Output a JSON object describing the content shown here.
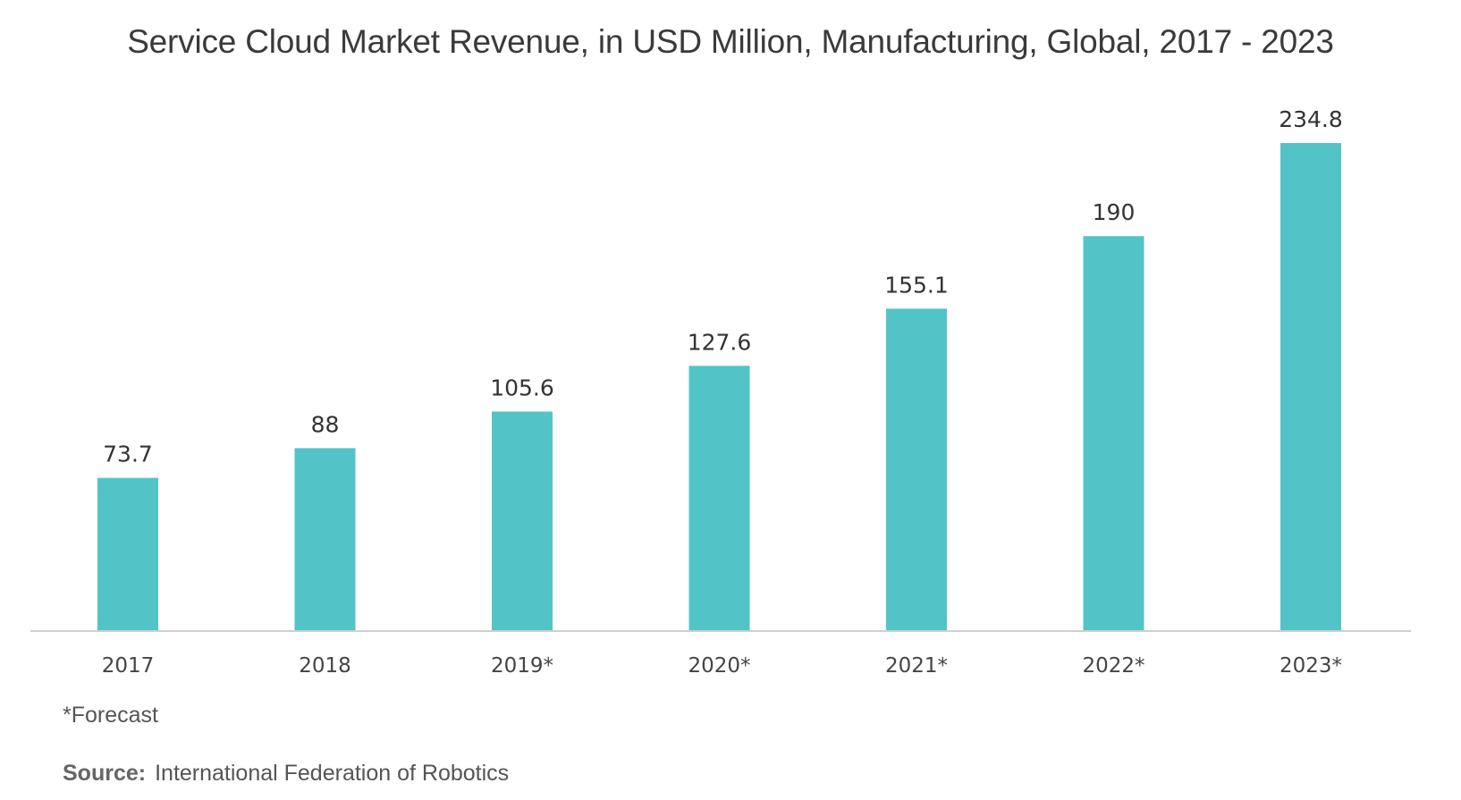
{
  "chart_data": {
    "type": "bar",
    "title": "Service Cloud Market Revenue, in USD Million, Manufacturing, Global, 2017 - 2023",
    "categories": [
      "2017",
      "2018",
      "2019*",
      "2020*",
      "2021*",
      "2022*",
      "2023*"
    ],
    "values": [
      73.7,
      88,
      105.6,
      127.6,
      155.1,
      190,
      234.8
    ],
    "value_labels": [
      "73.7",
      "88",
      "105.6",
      "127.6",
      "155.1",
      "190",
      "234.8"
    ],
    "xlabel": "",
    "ylabel": "",
    "ylim": [
      0,
      234.8
    ],
    "grid": false,
    "legend": "none",
    "bar_color": "#52c4c7",
    "axis_color": "#cfcfcf"
  },
  "footnote": "*Forecast",
  "source": {
    "prefix": "Source:",
    "text": "International Federation of Robotics"
  }
}
